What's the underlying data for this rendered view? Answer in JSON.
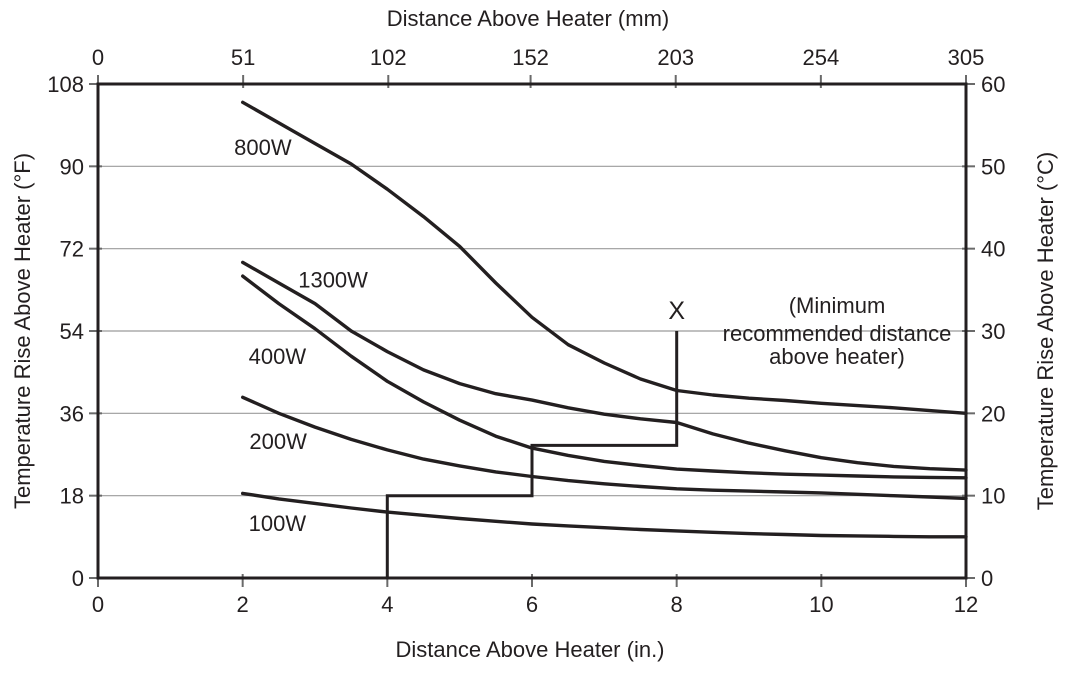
{
  "chart_data": {
    "type": "line",
    "axes": {
      "top": {
        "label": "Distance Above Heater (mm)",
        "ticks": [
          0,
          51,
          102,
          152,
          203,
          254,
          305
        ],
        "range": [
          0,
          305
        ]
      },
      "bottom": {
        "label": "Distance Above Heater (in.)",
        "ticks": [
          0,
          2,
          4,
          6,
          8,
          10,
          12
        ],
        "range": [
          0,
          12
        ]
      },
      "left": {
        "label": "Temperature Rise Above Heater (°F)",
        "ticks": [
          0,
          18,
          36,
          54,
          72,
          90,
          108
        ],
        "range": [
          0,
          108
        ]
      },
      "right": {
        "label": "Temperature Rise Above Heater (°C)",
        "ticks": [
          0,
          10,
          20,
          30,
          40,
          50,
          60
        ],
        "range": [
          0,
          60
        ]
      }
    },
    "grid": {
      "horizontal_gridlines_F": [
        18,
        36,
        54,
        72,
        90
      ],
      "vertical": false
    },
    "series": [
      {
        "name": "800W",
        "label_pos": {
          "x": 2.28,
          "y": 92.5
        },
        "points": [
          [
            2,
            104
          ],
          [
            2.5,
            99.5
          ],
          [
            3,
            95
          ],
          [
            3.5,
            90.5
          ],
          [
            4,
            85
          ],
          [
            4.5,
            79
          ],
          [
            5,
            72.5
          ],
          [
            5.5,
            64.5
          ],
          [
            6,
            57
          ],
          [
            6.5,
            51
          ],
          [
            7,
            47
          ],
          [
            7.5,
            43.5
          ],
          [
            8,
            41
          ],
          [
            8.5,
            40
          ],
          [
            9,
            39.3
          ],
          [
            9.5,
            38.8
          ],
          [
            10,
            38.2
          ],
          [
            10.5,
            37.7
          ],
          [
            11,
            37.2
          ],
          [
            11.5,
            36.6
          ],
          [
            12,
            36
          ]
        ]
      },
      {
        "name": "1300W",
        "label_pos": {
          "x": 3.25,
          "y": 63.5
        },
        "points": [
          [
            2,
            69
          ],
          [
            2.5,
            64.5
          ],
          [
            3,
            60
          ],
          [
            3.5,
            54
          ],
          [
            4,
            49.5
          ],
          [
            4.5,
            45.5
          ],
          [
            5,
            42.5
          ],
          [
            5.5,
            40.3
          ],
          [
            6,
            38.9
          ],
          [
            6.5,
            37.2
          ],
          [
            7,
            35.8
          ],
          [
            7.5,
            34.8
          ],
          [
            8,
            34
          ],
          [
            8.5,
            31.5
          ],
          [
            9,
            29.5
          ],
          [
            9.5,
            27.8
          ],
          [
            10,
            26.3
          ],
          [
            10.5,
            25.2
          ],
          [
            11,
            24.4
          ],
          [
            11.5,
            23.9
          ],
          [
            12,
            23.6
          ]
        ]
      },
      {
        "name": "400W",
        "label_pos": {
          "x": 2.48,
          "y": 46.8
        },
        "points": [
          [
            2,
            66
          ],
          [
            2.5,
            60
          ],
          [
            3,
            54.5
          ],
          [
            3.5,
            48.5
          ],
          [
            4,
            43
          ],
          [
            4.5,
            38.5
          ],
          [
            5,
            34.5
          ],
          [
            5.5,
            31
          ],
          [
            6,
            28.4
          ],
          [
            6.5,
            26.8
          ],
          [
            7,
            25.5
          ],
          [
            7.5,
            24.6
          ],
          [
            8,
            23.8
          ],
          [
            8.5,
            23.4
          ],
          [
            9,
            23
          ],
          [
            9.5,
            22.7
          ],
          [
            10,
            22.5
          ],
          [
            10.5,
            22.3
          ],
          [
            11,
            22.1
          ],
          [
            11.5,
            22
          ],
          [
            12,
            21.9
          ]
        ]
      },
      {
        "name": "200W",
        "label_pos": {
          "x": 2.49,
          "y": 28.2
        },
        "points": [
          [
            2,
            39.5
          ],
          [
            2.5,
            36
          ],
          [
            3,
            33
          ],
          [
            3.5,
            30.3
          ],
          [
            4,
            28
          ],
          [
            4.5,
            26
          ],
          [
            5,
            24.5
          ],
          [
            5.5,
            23.2
          ],
          [
            6,
            22.2
          ],
          [
            6.5,
            21.3
          ],
          [
            7,
            20.6
          ],
          [
            7.5,
            20
          ],
          [
            8,
            19.5
          ],
          [
            8.5,
            19.2
          ],
          [
            9,
            19
          ],
          [
            9.5,
            18.8
          ],
          [
            10,
            18.6
          ],
          [
            10.5,
            18.3
          ],
          [
            11,
            18
          ],
          [
            11.5,
            17.7
          ],
          [
            12,
            17.4
          ]
        ]
      },
      {
        "name": "100W",
        "label_pos": {
          "x": 2.48,
          "y": 10.3
        },
        "points": [
          [
            2,
            18.5
          ],
          [
            2.5,
            17.3
          ],
          [
            3,
            16.3
          ],
          [
            3.5,
            15.3
          ],
          [
            4,
            14.4
          ],
          [
            4.5,
            13.7
          ],
          [
            5,
            13
          ],
          [
            5.5,
            12.4
          ],
          [
            6,
            11.8
          ],
          [
            6.5,
            11.4
          ],
          [
            7,
            11
          ],
          [
            7.5,
            10.6
          ],
          [
            8,
            10.3
          ],
          [
            8.5,
            10
          ],
          [
            9,
            9.7
          ],
          [
            9.5,
            9.5
          ],
          [
            10,
            9.3
          ],
          [
            10.5,
            9.2
          ],
          [
            11,
            9.1
          ],
          [
            11.5,
            9
          ],
          [
            12,
            9
          ]
        ]
      }
    ],
    "min_distance_line": {
      "marker": "X",
      "marker_pos": {
        "x": 8,
        "y": 56.8
      },
      "points": [
        [
          4,
          0
        ],
        [
          4,
          18
        ],
        [
          6,
          18
        ],
        [
          6,
          29
        ],
        [
          8,
          29
        ],
        [
          8,
          54
        ]
      ],
      "annotation": {
        "lines": [
          "(Minimum",
          "recommended distance",
          "above heater)"
        ],
        "pos": {
          "x": 10.21,
          "y_lines": [
            57.9,
            51.8,
            47.0
          ]
        }
      }
    },
    "colors": {
      "line": "#231f20",
      "grid": "#9b9b9b",
      "tick": "#6a6a6a",
      "background": "#ffffff"
    },
    "legend": "inline-curve-labels"
  }
}
